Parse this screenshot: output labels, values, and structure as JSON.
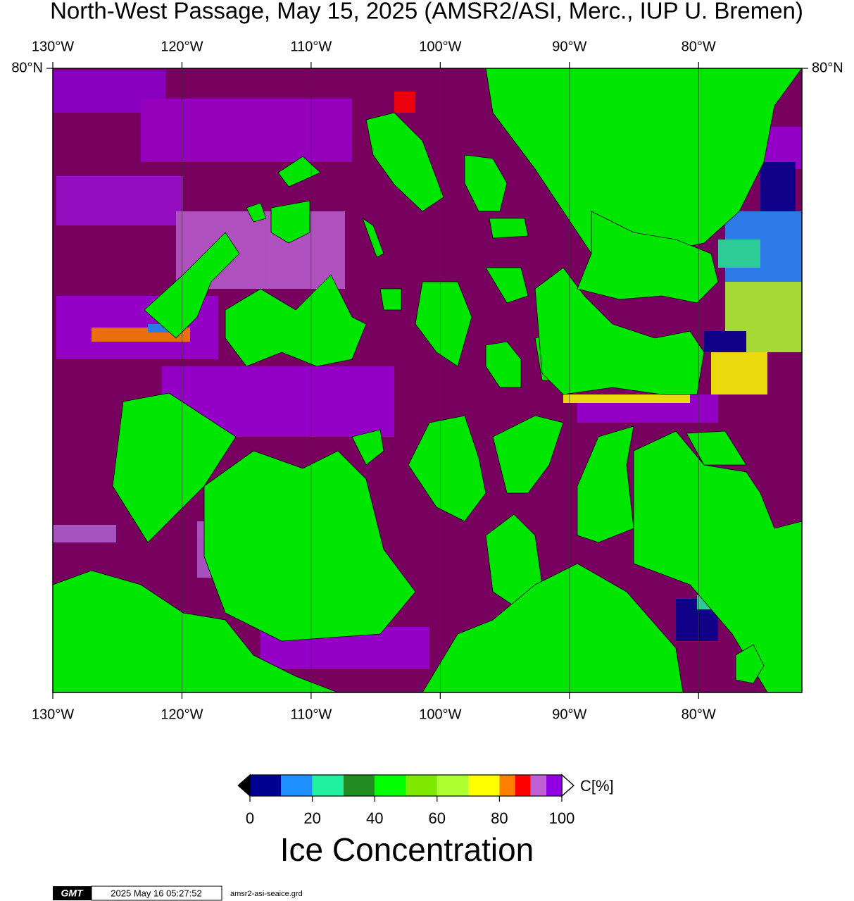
{
  "chart_data": {
    "type": "map",
    "title": "North-West Passage, May 15, 2025 (AMSR2/ASI, Merc., IUP U. Bremen)",
    "projection": "mercator",
    "xlim": [
      -130,
      -72
    ],
    "ylim": [
      67,
      80
    ],
    "xticks": [
      {
        "value": -130,
        "label": "130°W"
      },
      {
        "value": -120,
        "label": "120°W"
      },
      {
        "value": -110,
        "label": "110°W"
      },
      {
        "value": -100,
        "label": "100°W"
      },
      {
        "value": -90,
        "label": "90°W"
      },
      {
        "value": -80,
        "label": "80°W"
      }
    ],
    "yticks": [
      {
        "value": 80,
        "label": "80°N"
      }
    ],
    "grid": true,
    "land_color": "#00e600",
    "sea_color": "#78005f",
    "colorbar": {
      "title": "Ice Concentration",
      "unit_label": "C[%]",
      "lim": [
        0,
        100
      ],
      "ticks": [
        0,
        20,
        40,
        60,
        80,
        100
      ],
      "bins": [
        0,
        10,
        20,
        30,
        40,
        50,
        60,
        70,
        80,
        85,
        90,
        95,
        100
      ],
      "colors": [
        "#000090",
        "#1e90ff",
        "#20f0a0",
        "#228b22",
        "#00ff00",
        "#7fe800",
        "#adff2f",
        "#ffff00",
        "#ff8000",
        "#ff0000",
        "#c060d8",
        "#9000e0"
      ]
    }
  },
  "footer": {
    "logo": "GMT",
    "timestamp": "2025 May 16 05:27:52",
    "file": "amsr2-asi-seaice.grd"
  }
}
